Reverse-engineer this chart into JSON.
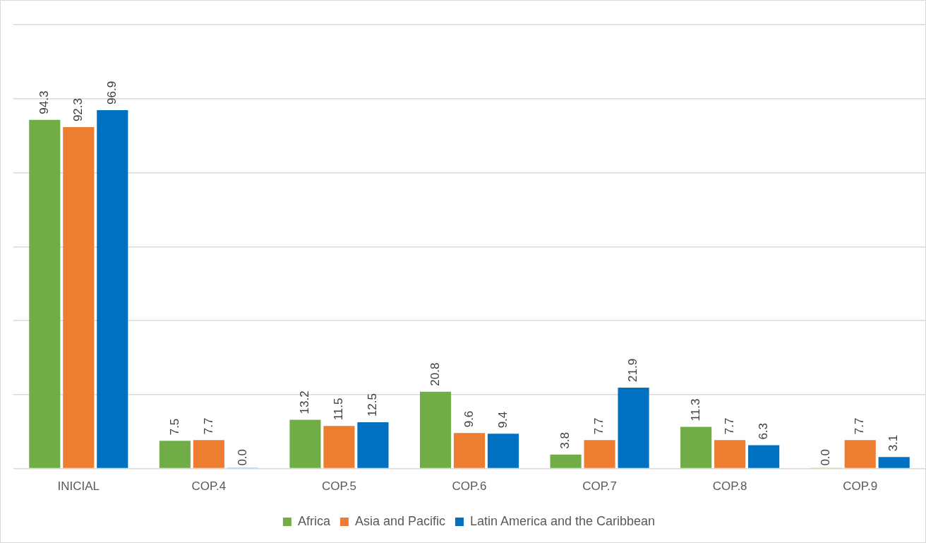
{
  "chart_data": {
    "type": "bar",
    "categories": [
      "INICIAL",
      "COP.4",
      "COP.5",
      "COP.6",
      "COP.7",
      "COP.8",
      "COP.9"
    ],
    "series": [
      {
        "name": "Africa",
        "color": "#70ad47",
        "values": [
          94.3,
          7.5,
          13.2,
          20.8,
          3.8,
          11.3,
          0.0
        ],
        "value_labels": [
          "94.3",
          "7.5",
          "13.2",
          "20.8",
          "3.8",
          "11.3",
          "0.0"
        ]
      },
      {
        "name": "Asia and Pacific",
        "color": "#ed7d31",
        "values": [
          92.3,
          7.7,
          11.5,
          9.6,
          7.7,
          7.7,
          7.7
        ],
        "value_labels": [
          "92.3",
          "7.7",
          "11.5",
          "9.6",
          "7.7",
          "7.7",
          "7.7"
        ]
      },
      {
        "name": "Latin America and the Caribbean",
        "color": "#0070c0",
        "values": [
          96.9,
          0.0,
          12.5,
          9.4,
          21.9,
          6.3,
          3.1
        ],
        "value_labels": [
          "96.9",
          "0.0",
          "12.5",
          "9.4",
          "21.9",
          "6.3",
          "3.1"
        ]
      }
    ],
    "ylim": [
      0,
      120
    ],
    "yticks": [
      0,
      20,
      40,
      60,
      80,
      100,
      120
    ],
    "tick_labels": "x",
    "grid": "y",
    "legend": "bottom"
  }
}
